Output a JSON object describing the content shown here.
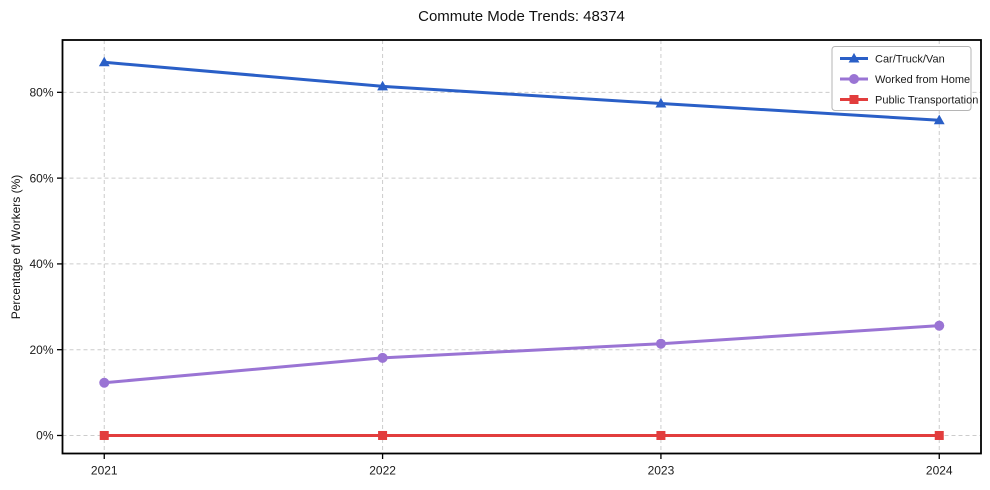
{
  "figure": {
    "background": "#ffffff"
  },
  "chart_data": {
    "type": "line",
    "title": "Commute Mode Trends: 48374",
    "xlabel": "",
    "ylabel": "Percentage of Workers (%)",
    "x": [
      2021,
      2022,
      2023,
      2024
    ],
    "xtick_labels": [
      "2021",
      "2022",
      "2023",
      "2024"
    ],
    "ytick_values": [
      0,
      20,
      40,
      60,
      80
    ],
    "ytick_labels": [
      "0%",
      "20%",
      "40%",
      "60%",
      "80%"
    ],
    "xlim": [
      2020.85,
      2024.15
    ],
    "ylim": [
      -4.2,
      92.2
    ],
    "grid": true,
    "grid_style": "dashed",
    "legend_position": "top-right",
    "series": [
      {
        "name": "Car/Truck/Van",
        "marker": "triangle-up",
        "color": "#2a5fc7",
        "values": [
          87.0,
          81.4,
          77.4,
          73.5
        ]
      },
      {
        "name": "Worked from Home",
        "marker": "circle",
        "color": "#9a74d4",
        "values": [
          12.3,
          18.1,
          21.4,
          25.6
        ]
      },
      {
        "name": "Public Transportation",
        "marker": "square",
        "color": "#e23d3d",
        "values": [
          0.0,
          0.0,
          0.0,
          0.0
        ]
      }
    ]
  },
  "colors": {
    "grid": "#cccccc",
    "spine": "#000000",
    "tick": "#000000",
    "text": "#1a1a1a",
    "legend_border": "#b5b5b5",
    "legend_bg": "#ffffff"
  }
}
